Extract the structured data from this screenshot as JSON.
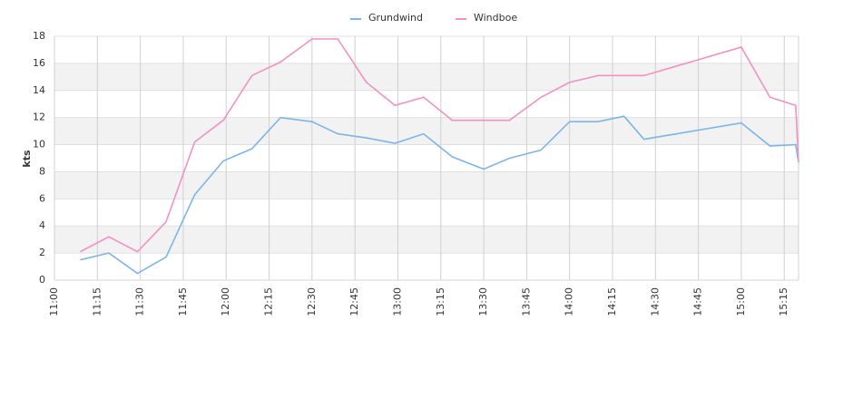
{
  "chart_data": {
    "type": "line",
    "ylabel": "kts",
    "x": [
      "11:09",
      "11:19",
      "11:29",
      "11:39",
      "11:49",
      "11:59",
      "12:09",
      "12:19",
      "12:30",
      "12:39",
      "12:49",
      "12:59",
      "13:09",
      "13:19",
      "13:30",
      "13:39",
      "13:50",
      "14:00",
      "14:10",
      "14:19",
      "14:26",
      "15:00",
      "15:10",
      "15:19",
      "15:20"
    ],
    "series": [
      {
        "name": "Grundwind",
        "color": "#7cb5ec",
        "values": [
          1.5,
          2.0,
          0.5,
          1.7,
          6.3,
          8.8,
          9.7,
          12.0,
          11.7,
          10.8,
          10.5,
          10.1,
          10.8,
          9.1,
          8.2,
          9.0,
          9.6,
          11.7,
          11.7,
          12.1,
          10.4,
          11.6,
          9.9,
          10.0,
          8.7
        ]
      },
      {
        "name": "Windboe",
        "color": "#f191c1",
        "values": [
          2.1,
          3.2,
          2.1,
          4.3,
          10.2,
          11.8,
          15.1,
          16.1,
          17.8,
          17.8,
          14.6,
          12.9,
          13.5,
          11.8,
          11.8,
          11.8,
          13.5,
          14.6,
          15.1,
          15.1,
          15.1,
          17.2,
          13.5,
          12.9,
          8.7
        ]
      }
    ],
    "xlim": [
      "11:00",
      "15:20"
    ],
    "xticks": [
      "11:00",
      "11:15",
      "11:30",
      "11:45",
      "12:00",
      "12:15",
      "12:30",
      "12:45",
      "13:00",
      "13:15",
      "13:30",
      "13:45",
      "14:00",
      "14:15",
      "14:30",
      "14:45",
      "15:00",
      "15:15"
    ],
    "ylim": [
      0,
      18
    ],
    "yticks": [
      0,
      2,
      4,
      6,
      8,
      10,
      12,
      14,
      16,
      18
    ],
    "grid": true,
    "legend": "top"
  }
}
